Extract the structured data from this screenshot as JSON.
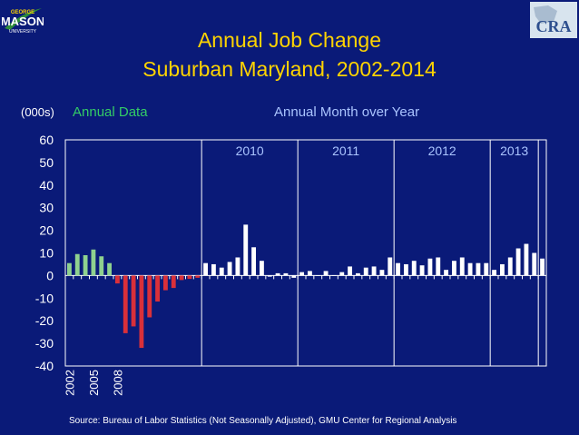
{
  "slide": {
    "title_line1": "Annual Job Change",
    "title_line2": "Suburban Maryland, 2002-2014",
    "units_label": "(000s)",
    "annual_label": "Annual Data",
    "monthly_label": "Annual Month over Year",
    "source": "Source: Bureau of Labor Statistics (Not Seasonally Adjusted), GMU Center for Regional Analysis"
  },
  "logos": {
    "left": {
      "line1": "GEORGE",
      "line2": "MASON",
      "line3": "UNIVERSITY"
    },
    "right": {
      "text": "CRA"
    }
  },
  "colors": {
    "background": "#0a1a78",
    "plot_background": "#0a1a78",
    "title": "#ffd400",
    "annual_label": "#33cc66",
    "monthly_label": "#aac4ff",
    "positive_annual": "#8fd18f",
    "negative_annual": "#d9303a",
    "monthly_bars": "#ffffff",
    "axis": "#ffffff",
    "text": "#ffffff"
  },
  "chart_data": {
    "type": "bar",
    "ylabel": "(000s)",
    "ylim": [
      -40,
      60
    ],
    "yticks": [
      60,
      50,
      40,
      30,
      20,
      10,
      0,
      -10,
      -20,
      -30,
      -40
    ],
    "grid": false,
    "annual": {
      "name": "Annual Data",
      "x_tick_labels": [
        "2002",
        "2005",
        "2008"
      ],
      "values": [
        5.5,
        9.5,
        9.0,
        11.5,
        8.5,
        5.5,
        -3.5,
        -25.5,
        -22.5,
        -32.0,
        -18.5,
        -11.5,
        -6.5,
        -5.5,
        -2.0,
        -1.5,
        -1.0
      ]
    },
    "monthly": {
      "name": "Annual Month over Year",
      "year_labels": [
        "2010",
        "2011",
        "2012",
        "2013"
      ],
      "values": [
        5.5,
        5.0,
        3.5,
        6.0,
        8.0,
        22.5,
        12.5,
        6.5,
        -0.5,
        1.0,
        1.0,
        -1.0,
        1.5,
        2.0,
        0.0,
        2.0,
        0.0,
        1.5,
        4.0,
        1.0,
        3.5,
        4.0,
        2.5,
        8.0,
        5.5,
        5.0,
        6.5,
        4.5,
        7.5,
        8.0,
        2.5,
        6.5,
        8.0,
        5.5,
        5.5,
        5.5,
        2.5,
        5.0,
        8.0,
        12.0,
        14.0,
        10.0,
        7.5
      ]
    }
  }
}
